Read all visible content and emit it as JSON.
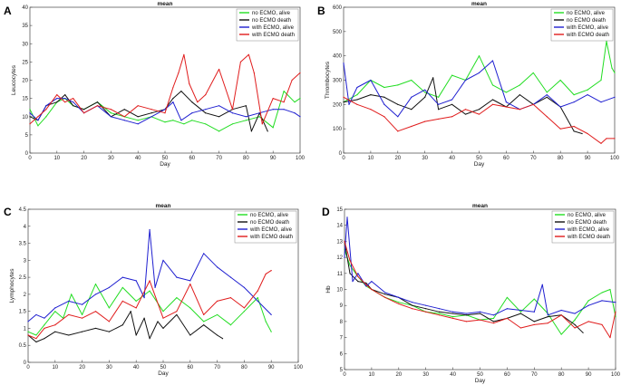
{
  "chart_data": [
    {
      "type": "line",
      "panel_label": "A",
      "title": "mean",
      "xlabel": "Day",
      "ylabel": "Leucocytes",
      "xlim": [
        0,
        100
      ],
      "ylim": [
        0,
        40
      ],
      "xticks": [
        0,
        10,
        20,
        30,
        40,
        50,
        60,
        70,
        80,
        90,
        100
      ],
      "yticks": [
        0,
        5,
        10,
        15,
        20,
        25,
        30,
        35,
        40
      ],
      "legend": "top-right",
      "series": [
        {
          "name": "no ECMO, alive",
          "color": "#22dd22",
          "x": [
            0,
            3,
            6,
            10,
            13,
            16,
            20,
            25,
            30,
            35,
            40,
            45,
            50,
            53,
            57,
            60,
            65,
            70,
            75,
            80,
            85,
            90,
            94,
            98,
            100
          ],
          "y": [
            12,
            7.5,
            10,
            14,
            15,
            13,
            12,
            14,
            11,
            10,
            9,
            10,
            8.5,
            9,
            8,
            9,
            8,
            6,
            8,
            9,
            10,
            7,
            17,
            14,
            15
          ]
        },
        {
          "name": "no ECMO death",
          "color": "#111111",
          "x": [
            0,
            3,
            6,
            10,
            13,
            16,
            20,
            25,
            30,
            35,
            40,
            45,
            50,
            53,
            56,
            60,
            65,
            70,
            75,
            80,
            82,
            85,
            88
          ],
          "y": [
            10,
            9,
            13,
            14,
            16,
            13,
            12,
            14,
            10,
            12,
            10,
            11,
            12,
            15,
            17,
            14,
            11,
            10,
            12,
            13,
            6,
            11,
            6
          ]
        },
        {
          "name": "with ECMO, alive",
          "color": "#1f1fd0",
          "x": [
            0,
            3,
            6,
            10,
            13,
            16,
            20,
            25,
            30,
            35,
            40,
            45,
            50,
            53,
            56,
            60,
            65,
            70,
            75,
            80,
            85,
            90,
            94,
            98,
            100
          ],
          "y": [
            11,
            9,
            13,
            15,
            15,
            14,
            11,
            13,
            10,
            9,
            8,
            10,
            12,
            14,
            9,
            11,
            12,
            13,
            11,
            10,
            11,
            12,
            12,
            11,
            10
          ]
        },
        {
          "name": "with ECMO death",
          "color": "#e01c1c",
          "x": [
            0,
            3,
            6,
            10,
            13,
            16,
            20,
            25,
            30,
            35,
            40,
            45,
            50,
            53,
            55,
            57,
            59,
            62,
            65,
            70,
            75,
            78,
            81,
            83,
            86,
            90,
            94,
            97,
            100
          ],
          "y": [
            8,
            10,
            12,
            16,
            14,
            15,
            11,
            13,
            12,
            10,
            13,
            12,
            11,
            18,
            22,
            27,
            19,
            14,
            16,
            23,
            12,
            25,
            27,
            22,
            8,
            15,
            14,
            20,
            22
          ]
        }
      ]
    },
    {
      "type": "line",
      "panel_label": "B",
      "title": "mean",
      "xlabel": "Day",
      "ylabel": "Thrombocytes",
      "xlim": [
        0,
        100
      ],
      "ylim": [
        0,
        600
      ],
      "xticks": [
        0,
        10,
        20,
        30,
        40,
        50,
        60,
        70,
        80,
        90,
        100
      ],
      "yticks": [
        0,
        100,
        200,
        300,
        400,
        500,
        600
      ],
      "legend": "top-right",
      "series": [
        {
          "name": "no ECMO, alive",
          "color": "#22dd22",
          "x": [
            0,
            5,
            10,
            15,
            20,
            25,
            30,
            35,
            40,
            45,
            50,
            55,
            60,
            65,
            70,
            75,
            80,
            85,
            90,
            95,
            97,
            99,
            100
          ],
          "y": [
            210,
            240,
            300,
            270,
            280,
            300,
            250,
            230,
            320,
            300,
            400,
            280,
            250,
            280,
            330,
            250,
            300,
            240,
            260,
            300,
            460,
            350,
            330
          ]
        },
        {
          "name": "no ECMO death",
          "color": "#111111",
          "x": [
            0,
            5,
            10,
            15,
            20,
            25,
            30,
            33,
            35,
            40,
            45,
            50,
            55,
            60,
            65,
            70,
            75,
            80,
            85,
            88
          ],
          "y": [
            210,
            220,
            240,
            230,
            200,
            180,
            230,
            310,
            180,
            200,
            160,
            180,
            220,
            190,
            240,
            200,
            230,
            190,
            90,
            80
          ]
        },
        {
          "name": "with ECMO, alive",
          "color": "#1f1fd0",
          "x": [
            0,
            2,
            5,
            10,
            15,
            20,
            25,
            30,
            35,
            40,
            45,
            50,
            55,
            60,
            65,
            70,
            75,
            80,
            85,
            90,
            95,
            100
          ],
          "y": [
            370,
            200,
            270,
            300,
            200,
            150,
            230,
            260,
            200,
            220,
            300,
            330,
            380,
            210,
            180,
            200,
            240,
            190,
            210,
            240,
            210,
            230
          ]
        },
        {
          "name": "with ECMO death",
          "color": "#e01c1c",
          "x": [
            0,
            5,
            10,
            15,
            20,
            25,
            30,
            35,
            40,
            45,
            50,
            55,
            60,
            65,
            70,
            75,
            80,
            85,
            90,
            95,
            97,
            100
          ],
          "y": [
            230,
            200,
            180,
            150,
            90,
            110,
            130,
            140,
            150,
            180,
            160,
            200,
            190,
            180,
            200,
            150,
            100,
            110,
            80,
            40,
            60,
            60
          ]
        }
      ]
    },
    {
      "type": "line",
      "panel_label": "C",
      "title": "mean",
      "xlabel": "Day",
      "ylabel": "Lymphocytes",
      "xlim": [
        0,
        100
      ],
      "ylim": [
        0,
        4.5
      ],
      "xticks": [
        0,
        10,
        20,
        30,
        40,
        50,
        60,
        70,
        80,
        90,
        100
      ],
      "yticks": [
        0,
        0.5,
        1,
        1.5,
        2,
        2.5,
        3,
        3.5,
        4,
        4.5
      ],
      "legend": "top-right",
      "series": [
        {
          "name": "no ECMO, alive",
          "color": "#22dd22",
          "x": [
            0,
            3,
            6,
            10,
            13,
            16,
            20,
            25,
            30,
            35,
            40,
            45,
            50,
            55,
            60,
            65,
            70,
            75,
            80,
            85,
            88,
            90
          ],
          "y": [
            0.9,
            0.8,
            1.1,
            1.5,
            1.3,
            2.0,
            1.4,
            2.3,
            1.6,
            2.2,
            1.8,
            2.1,
            1.5,
            1.9,
            1.6,
            1.2,
            1.4,
            1.1,
            1.5,
            1.9,
            1.2,
            0.9
          ]
        },
        {
          "name": "no ECMO death",
          "color": "#111111",
          "x": [
            0,
            3,
            6,
            10,
            15,
            20,
            25,
            30,
            35,
            38,
            40,
            43,
            45,
            48,
            50,
            55,
            60,
            65,
            70,
            72
          ],
          "y": [
            0.8,
            0.6,
            0.7,
            0.9,
            0.8,
            0.9,
            1.0,
            0.9,
            1.1,
            1.5,
            0.8,
            1.3,
            0.7,
            1.2,
            1.0,
            1.4,
            0.8,
            1.1,
            0.8,
            0.7
          ]
        },
        {
          "name": "with ECMO, alive",
          "color": "#1f1fd0",
          "x": [
            0,
            3,
            6,
            10,
            15,
            20,
            25,
            30,
            35,
            40,
            43,
            45,
            47,
            50,
            55,
            60,
            65,
            70,
            75,
            80,
            85,
            90
          ],
          "y": [
            1.2,
            1.4,
            1.3,
            1.6,
            1.8,
            1.7,
            2.0,
            2.2,
            2.5,
            2.4,
            1.9,
            3.9,
            2.2,
            3.0,
            2.5,
            2.4,
            3.2,
            2.8,
            2.5,
            2.2,
            1.8,
            1.4
          ]
        },
        {
          "name": "with ECMO death",
          "color": "#e01c1c",
          "x": [
            0,
            3,
            6,
            10,
            15,
            20,
            25,
            30,
            35,
            40,
            45,
            50,
            55,
            60,
            65,
            70,
            75,
            80,
            85,
            88,
            90
          ],
          "y": [
            0.8,
            0.7,
            1.0,
            1.1,
            1.4,
            1.3,
            1.5,
            1.2,
            1.8,
            1.6,
            2.4,
            1.3,
            1.5,
            2.3,
            1.4,
            1.8,
            1.9,
            1.6,
            2.1,
            2.6,
            2.7
          ]
        }
      ]
    },
    {
      "type": "line",
      "panel_label": "D",
      "title": "mean",
      "xlabel": "Day",
      "ylabel": "Hb",
      "xlim": [
        0,
        100
      ],
      "ylim": [
        5,
        15
      ],
      "xticks": [
        0,
        10,
        20,
        30,
        40,
        50,
        60,
        70,
        80,
        90,
        100
      ],
      "yticks": [
        5,
        6,
        7,
        8,
        9,
        10,
        11,
        12,
        13,
        14,
        15
      ],
      "legend": "top-right",
      "series": [
        {
          "name": "no ECMO, alive",
          "color": "#22dd22",
          "x": [
            0,
            2,
            5,
            8,
            10,
            15,
            20,
            25,
            30,
            35,
            40,
            45,
            50,
            55,
            60,
            65,
            70,
            75,
            80,
            85,
            90,
            95,
            98,
            100
          ],
          "y": [
            12.5,
            11.5,
            10.8,
            10.2,
            10.0,
            9.5,
            9.2,
            9.0,
            8.6,
            8.5,
            8.3,
            8.4,
            8.1,
            8.2,
            9.5,
            8.6,
            9.4,
            8.5,
            7.2,
            8.1,
            9.3,
            9.8,
            10.0,
            8.3
          ]
        },
        {
          "name": "no ECMO death",
          "color": "#111111",
          "x": [
            0,
            2,
            5,
            8,
            10,
            15,
            20,
            25,
            30,
            35,
            40,
            45,
            50,
            55,
            60,
            65,
            70,
            75,
            80,
            85,
            88
          ],
          "y": [
            13.0,
            11.0,
            10.5,
            10.4,
            10.0,
            9.7,
            9.5,
            9.0,
            8.8,
            8.6,
            8.5,
            8.4,
            8.5,
            8.0,
            8.2,
            8.5,
            8.0,
            8.3,
            8.4,
            7.8,
            7.3
          ]
        },
        {
          "name": "with ECMO, alive",
          "color": "#1f1fd0",
          "x": [
            0,
            1,
            3,
            5,
            8,
            10,
            15,
            20,
            25,
            30,
            35,
            40,
            45,
            50,
            55,
            60,
            65,
            70,
            73,
            75,
            80,
            85,
            90,
            95,
            100
          ],
          "y": [
            12.0,
            14.5,
            10.5,
            11.0,
            10.2,
            10.5,
            9.8,
            9.5,
            9.2,
            9.0,
            8.8,
            8.6,
            8.5,
            8.6,
            8.4,
            8.8,
            8.7,
            8.6,
            10.3,
            8.4,
            8.7,
            8.5,
            9.0,
            9.3,
            9.2
          ]
        },
        {
          "name": "with ECMO death",
          "color": "#e01c1c",
          "x": [
            0,
            2,
            5,
            8,
            10,
            15,
            20,
            25,
            30,
            35,
            40,
            45,
            50,
            55,
            60,
            65,
            70,
            75,
            80,
            85,
            90,
            95,
            98,
            100
          ],
          "y": [
            13.0,
            11.8,
            10.8,
            10.3,
            10.0,
            9.5,
            9.1,
            8.8,
            8.6,
            8.4,
            8.2,
            8.0,
            8.1,
            7.9,
            8.2,
            7.6,
            7.8,
            7.9,
            8.4,
            7.6,
            8.0,
            7.8,
            7.0,
            8.6
          ]
        }
      ]
    }
  ]
}
